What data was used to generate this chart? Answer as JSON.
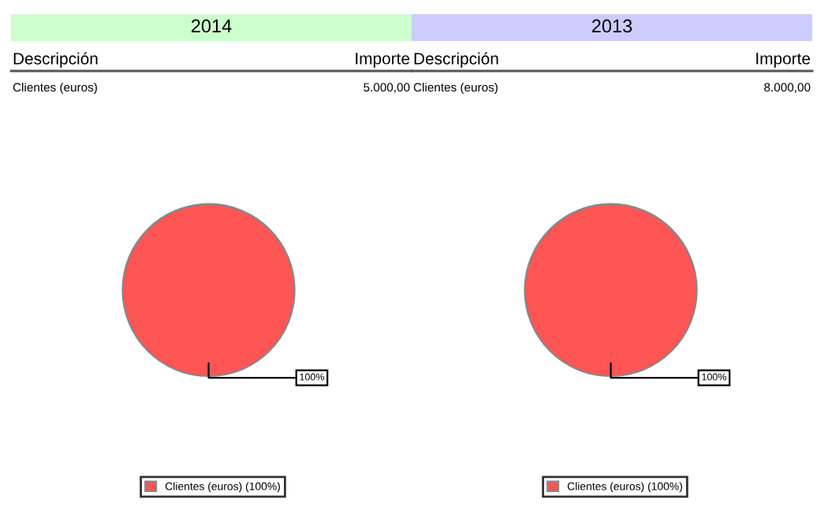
{
  "chart_data": [
    {
      "type": "pie",
      "title": "2014",
      "categories": [
        "Clientes (euros) (100%)"
      ],
      "values": [
        100
      ],
      "colors": [
        "#fe5555"
      ],
      "value_labels": [
        "100%"
      ],
      "legend": "bottom",
      "annotations": [
        "Descripción",
        "Importe",
        "Clientes (euros)",
        "5.000,00"
      ]
    },
    {
      "type": "pie",
      "title": "2013",
      "categories": [
        "Clientes (euros) (100%)"
      ],
      "values": [
        100
      ],
      "colors": [
        "#fe5555"
      ],
      "value_labels": [
        "100%"
      ],
      "legend": "bottom",
      "annotations": [
        "Descripción",
        "Importe",
        "Clientes (euros)",
        "8.000,00"
      ]
    }
  ]
}
